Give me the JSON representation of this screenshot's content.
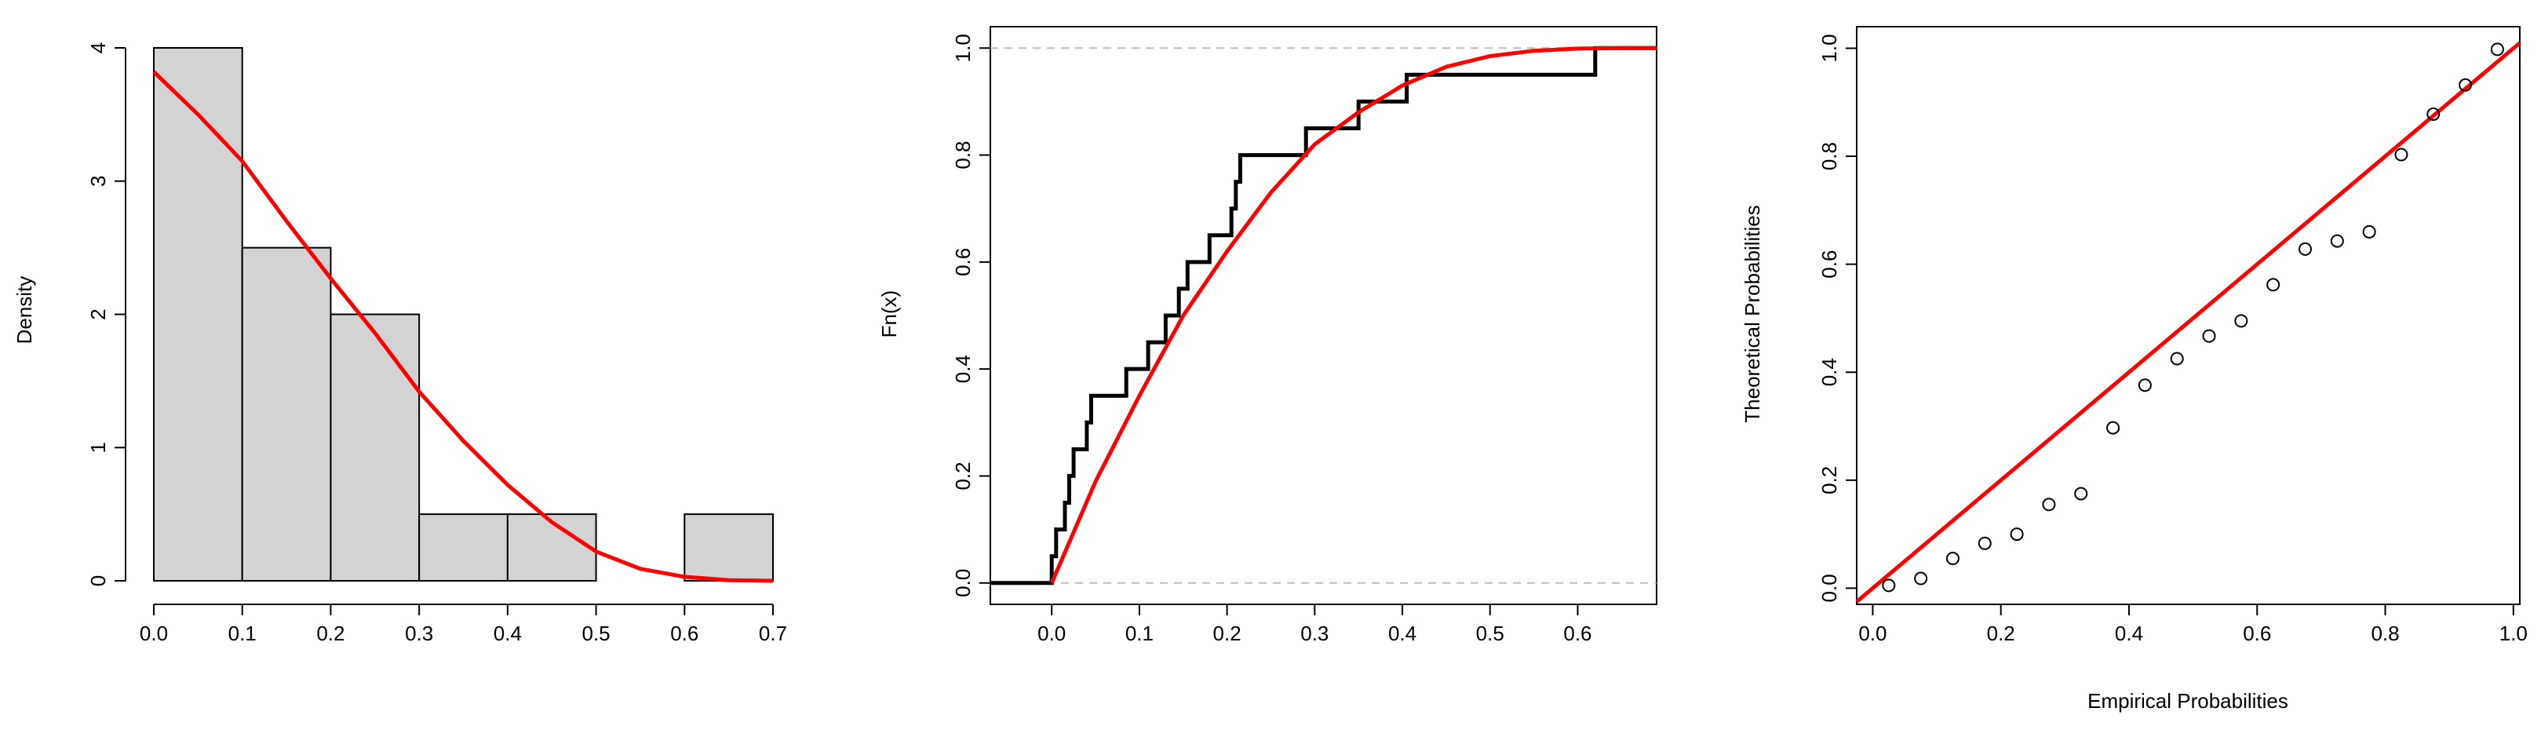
{
  "colors": {
    "fit": "#ff0000",
    "bar_fill": "#d3d3d3",
    "ink": "#000000",
    "ref_line": "#bebebe"
  },
  "chart_data": [
    {
      "type": "histogram",
      "title": "",
      "xlabel": "",
      "ylabel": "Density",
      "xlim": [
        0,
        0.7
      ],
      "ylim": [
        0,
        4
      ],
      "x_ticks": [
        0.0,
        0.1,
        0.2,
        0.3,
        0.4,
        0.5,
        0.6,
        0.7
      ],
      "x_tick_labels": [
        "0.0",
        "0.1",
        "0.2",
        "0.3",
        "0.4",
        "0.5",
        "0.6",
        "0.7"
      ],
      "y_ticks": [
        0,
        1,
        2,
        3,
        4
      ],
      "y_tick_labels": [
        "0",
        "1",
        "2",
        "3",
        "4"
      ],
      "bins": [
        {
          "start": 0.0,
          "end": 0.1,
          "density": 4.0
        },
        {
          "start": 0.1,
          "end": 0.2,
          "density": 2.5
        },
        {
          "start": 0.2,
          "end": 0.3,
          "density": 2.0
        },
        {
          "start": 0.3,
          "end": 0.4,
          "density": 0.5
        },
        {
          "start": 0.4,
          "end": 0.5,
          "density": 0.5
        },
        {
          "start": 0.5,
          "end": 0.6,
          "density": 0.0
        },
        {
          "start": 0.6,
          "end": 0.7,
          "density": 0.5
        }
      ],
      "fitted_curve": {
        "x": [
          0,
          0.05,
          0.1,
          0.15,
          0.2,
          0.25,
          0.3,
          0.35,
          0.4,
          0.45,
          0.5,
          0.55,
          0.6,
          0.65,
          0.7
        ],
        "y": [
          3.82,
          3.5,
          3.15,
          2.7,
          2.27,
          1.86,
          1.42,
          1.05,
          0.72,
          0.44,
          0.22,
          0.09,
          0.03,
          0.005,
          0.0
        ]
      }
    },
    {
      "type": "line",
      "title": "",
      "xlabel": "",
      "ylabel": "Fn(x)",
      "xlim": [
        -0.07,
        0.69
      ],
      "ylim": [
        -0.04,
        1.04
      ],
      "x_ticks": [
        0.0,
        0.1,
        0.2,
        0.3,
        0.4,
        0.5,
        0.6
      ],
      "x_tick_labels": [
        "0.0",
        "0.1",
        "0.2",
        "0.3",
        "0.4",
        "0.5",
        "0.6"
      ],
      "y_ticks": [
        0.0,
        0.2,
        0.4,
        0.6,
        0.8,
        1.0
      ],
      "y_tick_labels": [
        "0.0",
        "0.2",
        "0.4",
        "0.6",
        "0.8",
        "1.0"
      ],
      "reference_lines": [
        0,
        1
      ],
      "ecdf_steps": [
        {
          "x": 0.0,
          "y": 0.05
        },
        {
          "x": 0.005,
          "y": 0.1
        },
        {
          "x": 0.015,
          "y": 0.15
        },
        {
          "x": 0.02,
          "y": 0.2
        },
        {
          "x": 0.025,
          "y": 0.25
        },
        {
          "x": 0.04,
          "y": 0.3
        },
        {
          "x": 0.045,
          "y": 0.35
        },
        {
          "x": 0.085,
          "y": 0.4
        },
        {
          "x": 0.11,
          "y": 0.45
        },
        {
          "x": 0.13,
          "y": 0.5
        },
        {
          "x": 0.145,
          "y": 0.55
        },
        {
          "x": 0.155,
          "y": 0.6
        },
        {
          "x": 0.18,
          "y": 0.65
        },
        {
          "x": 0.205,
          "y": 0.7
        },
        {
          "x": 0.21,
          "y": 0.75
        },
        {
          "x": 0.215,
          "y": 0.8
        },
        {
          "x": 0.29,
          "y": 0.85
        },
        {
          "x": 0.35,
          "y": 0.9
        },
        {
          "x": 0.405,
          "y": 0.95
        },
        {
          "x": 0.62,
          "y": 1.0
        }
      ],
      "fitted_cdf": {
        "x": [
          0,
          0.05,
          0.1,
          0.15,
          0.2,
          0.25,
          0.3,
          0.35,
          0.4,
          0.45,
          0.5,
          0.55,
          0.6,
          0.65,
          0.69
        ],
        "y": [
          0,
          0.19,
          0.35,
          0.5,
          0.62,
          0.73,
          0.82,
          0.88,
          0.93,
          0.965,
          0.985,
          0.995,
          0.999,
          1.0,
          1.0
        ]
      }
    },
    {
      "type": "scatter",
      "title": "",
      "xlabel": "Empirical Probabilities",
      "ylabel": "Theoretical Probabilities",
      "xlim": [
        -0.025,
        1.01
      ],
      "ylim": [
        -0.03,
        1.04
      ],
      "x_ticks": [
        0.0,
        0.2,
        0.4,
        0.6,
        0.8,
        1.0
      ],
      "x_tick_labels": [
        "0.0",
        "0.2",
        "0.4",
        "0.6",
        "0.8",
        "1.0"
      ],
      "y_ticks": [
        0.0,
        0.2,
        0.4,
        0.6,
        0.8,
        1.0
      ],
      "y_tick_labels": [
        "0.0",
        "0.2",
        "0.4",
        "0.6",
        "0.8",
        "1.0"
      ],
      "reference_line": {
        "x": [
          -0.025,
          1.01
        ],
        "y": [
          -0.025,
          1.01
        ]
      },
      "points": {
        "x": [
          0.025,
          0.075,
          0.125,
          0.175,
          0.225,
          0.275,
          0.325,
          0.375,
          0.425,
          0.475,
          0.525,
          0.575,
          0.625,
          0.675,
          0.725,
          0.775,
          0.825,
          0.875,
          0.925,
          0.975
        ],
        "y": [
          0.005,
          0.018,
          0.055,
          0.083,
          0.1,
          0.155,
          0.175,
          0.297,
          0.376,
          0.425,
          0.467,
          0.495,
          0.562,
          0.628,
          0.643,
          0.66,
          0.803,
          0.878,
          0.932,
          0.998
        ]
      }
    }
  ]
}
